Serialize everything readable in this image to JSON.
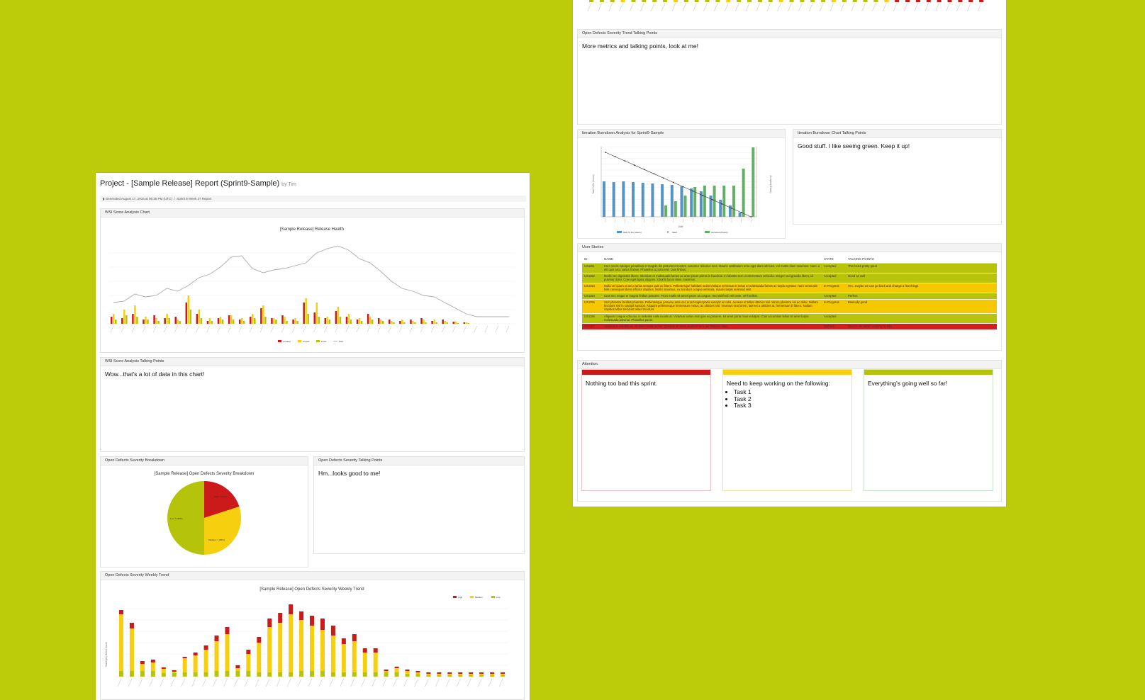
{
  "colors": {
    "background": "#bdcc0a",
    "high": "#cc1a1a",
    "medium": "#f6cf0f",
    "low": "#b5c40a",
    "task_todo": "#5493c4",
    "accepted": "#66ad66",
    "row_green": "#b8c40c",
    "row_yellow": "#f5c800",
    "row_red": "#d11f1f"
  },
  "report": {
    "title": "Project - [Sample Release] Report (Sprint9-Sample)",
    "byline": "by Tim",
    "generated": "Generated August 17, 2016 at 06:35 PM (UTC)",
    "subtitle": "Sprint 9 Week 27 Report"
  },
  "wsi_panel": {
    "heading": "WSI Score Analysis Chart",
    "chart_title": "[Sample Release] Release Health",
    "legend": [
      "Created",
      "Closed",
      "Fixed",
      "WSI"
    ]
  },
  "wsi_talking": {
    "heading": "WSI Score Analysis Talking Points",
    "text": "Wow...that's a lot of data in this chart!"
  },
  "severity_breakdown": {
    "heading": "Open Defects Severity Breakdown",
    "chart_title": "[Sample Release] Open Defects Severity Breakdown",
    "labels": {
      "high": "High: 2 (20%)",
      "medium": "Medium: 3 (30%)",
      "low": "Low: 5 (50%)"
    }
  },
  "severity_talking": {
    "heading": "Open Defects Severity Talking Points",
    "text": "Hm...looks good to me!"
  },
  "weekly_trend": {
    "heading": "Open Defects Severity Weekly Trend",
    "chart_title": "[Sample Release] Open Defects Severity Weekly Trend",
    "ylabel": "Total Open Defect Count",
    "legend": [
      "High",
      "Medium",
      "Low"
    ]
  },
  "weekly_talking": {
    "heading": "Open Defects Severity Trend Talking Points",
    "text": "More metrics and talking points, look at me!"
  },
  "burndown": {
    "heading": "Iteration Burndown Analysis for Sprint9-Sample",
    "ylabel_left": "Task To Do (Hours)",
    "ylabel_right": "Accepted (Points)",
    "xlabel": "Date",
    "legend": [
      "Task To Do (Hours)",
      "Ideal",
      "Accepted (Points)"
    ]
  },
  "burndown_talking": {
    "heading": "Iteration Burndown Chart Talking Points",
    "text": "Good stuff. I like seeing green. Keep it up!"
  },
  "user_stories": {
    "heading": "User Stories",
    "columns": [
      "ID",
      "NAME",
      "STATE",
      "TALKING POINTS"
    ],
    "rows": [
      {
        "id": "US1151",
        "name": "Cum sociis natoque penatibus et magnis dis parturient montes, nascetur ridiculus mus. Mauris vestibulum urna eget diam ultricies, vel mattis diam maximus. Nunc a elit quis arcu varius finibus. Phasellus a porta nisl. Duis finibus.",
        "state": "Accepted",
        "talking": "This looks pretty good",
        "color": "green"
      },
      {
        "id": "US1152",
        "name": "Morbi nec dignissim libero. Interdum et malesuada fames ac ante ipsum primis in faucibus. In lobortis sem ut elementum vehicula. Integer sed gravida libero, id pulvinar dolor. Cras eget ligula aliquam, lobortis lacus vitae, maximus.",
        "state": "Accepted",
        "talking": "Good as well",
        "color": "green"
      },
      {
        "id": "US1153",
        "name": "Nulla vel quam ut arcu varius semper quis ac libero. Pellentesque habitant morbi tristique senectus et netus et malesuada fames ac turpis egestas. Nam venenatis felis consequat libero efficitur dapibus. Morbi maximus, ex tincidunt congue vehicula, mauris turpis euismod velit.",
        "state": "In-Progress",
        "talking": "Hm...maybe we can go back and change a few things",
        "color": "yellow"
      },
      {
        "id": "US1154",
        "name": "Cras nec neque et magna finibus posuere. Proin mattis sit amet ipsum ut congue. Sed eleifend velit ante, vel facilisis.",
        "state": "Accepted",
        "talking": "Perfect.",
        "color": "green"
      },
      {
        "id": "US1155",
        "name": "Sed pharetra facilisis pharetra. Pellentesque posuere ante nec eros feugiat porta suscipit ac odio. Aenean ut tellus ultricies nisi rutrum pharetra vel ac dolor. Nullam tincidunt nisl in suscipit suscipit. Aliquam pellentesque fermentum metus, ac ultricies nisi. Vivamus erat lorem, laoreet a ultricies at, fermentum in libero. Nullam dapibus tellus tincidunt tellus tincidunt.",
        "state": "In-Progress",
        "talking": "Basically good.",
        "color": "yellow"
      },
      {
        "id": "US1156",
        "name": "Aliquam congue odio dui, in molestie nulla iaculis at. Vivamus varius erat quis ex posuere, sit amet porta risus volutpat. Cras accumsan tellus sit amet turpis malesuada pulvinar. Phasellus purus.",
        "state": "Accepted",
        "talking": "",
        "color": "green"
      },
      {
        "id": "US1157",
        "name": "Vivamus a sodales ex, sit amet mattis lectus. Quisque sit amet eleifend sem, vel tristique ante.",
        "state": "Defined",
        "talking": "Need to do better working on this.",
        "color": "red"
      }
    ]
  },
  "attention": {
    "heading": "Attention",
    "red_text": "Nothing too bad this sprint.",
    "yellow_text": "Need to keep working on the following:",
    "yellow_items": [
      "Task 1",
      "Task 2",
      "Task 3"
    ],
    "green_text": "Everything's going well so far!"
  }
}
